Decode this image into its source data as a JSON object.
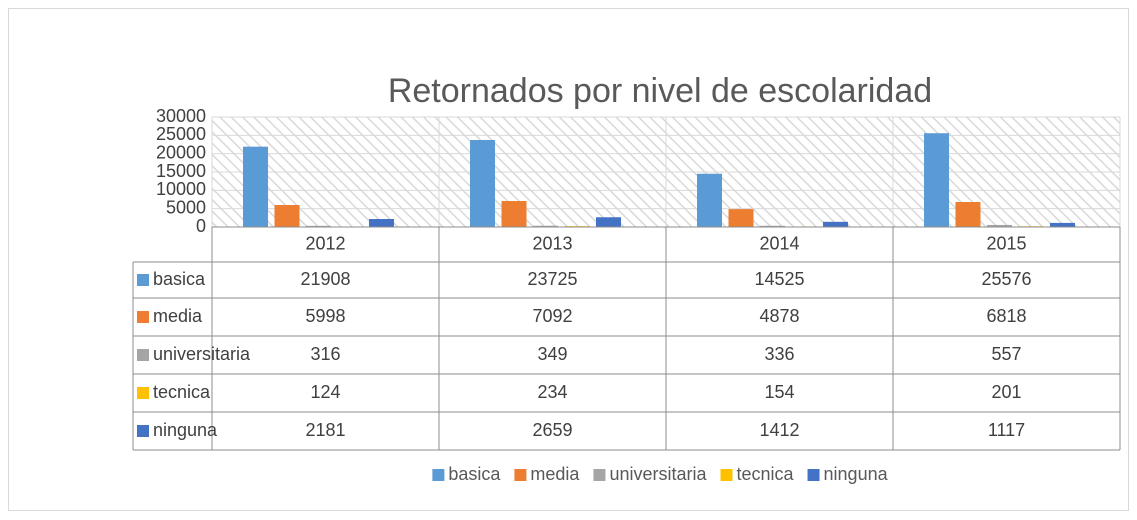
{
  "chart_data": {
    "type": "bar",
    "title": "Retornados por nivel de escolaridad",
    "categories": [
      "2012",
      "2013",
      "2014",
      "2015"
    ],
    "series": [
      {
        "name": "basica",
        "color": "#5b9bd5",
        "values": [
          21908,
          23725,
          14525,
          25576
        ]
      },
      {
        "name": "media",
        "color": "#ed7d31",
        "values": [
          5998,
          7092,
          4878,
          6818
        ]
      },
      {
        "name": "universitaria",
        "color": "#a5a5a5",
        "values": [
          316,
          349,
          336,
          557
        ]
      },
      {
        "name": "tecnica",
        "color": "#ffc000",
        "values": [
          124,
          234,
          154,
          201
        ]
      },
      {
        "name": "ninguna",
        "color": "#4472c4",
        "values": [
          2181,
          2659,
          1412,
          1117
        ]
      }
    ],
    "ylim": [
      0,
      30000
    ],
    "yticks": [
      0,
      5000,
      10000,
      15000,
      20000,
      25000,
      30000
    ],
    "grid": true,
    "legend": "bottom"
  }
}
